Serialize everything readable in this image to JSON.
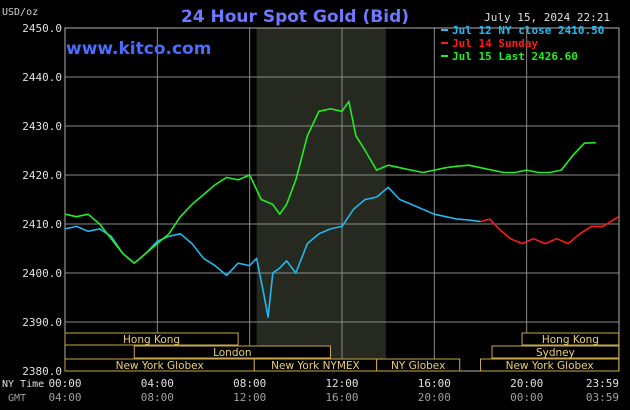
{
  "chart_data": {
    "type": "line",
    "title": "24 Hour Spot Gold (Bid)",
    "watermark": "www.kitco.com",
    "ylabel": "USD/oz",
    "timestamp": "July 15, 2024 22:21",
    "ylim": [
      2380,
      2450
    ],
    "yticks": [
      "2450.0",
      "2440.0",
      "2430.0",
      "2420.0",
      "2410.0",
      "2400.0",
      "2390.0",
      "2380.0"
    ],
    "xlim": [
      0,
      24
    ],
    "xticks_ny": [
      "00:00",
      "04:00",
      "08:00",
      "12:00",
      "16:00",
      "20:00",
      "23:59"
    ],
    "xticks_gmt": [
      "04:00",
      "08:00",
      "12:00",
      "16:00",
      "20:00",
      "00:00",
      "03:59"
    ],
    "x_axis_labels": {
      "ny": "NY Time",
      "gmt": "GMT"
    },
    "legend_placement": "top-right",
    "grid": true,
    "shaded_region_hours": [
      8.3,
      13.9
    ],
    "legend": [
      {
        "label": "Jul 12 NY close 2410.50",
        "color": "#22b8f0"
      },
      {
        "label": "Jul 14 Sunday",
        "color": "#ff1a1a"
      },
      {
        "label": "Jul 15 Last 2426.60",
        "color": "#22ee22"
      }
    ],
    "series": [
      {
        "name": "Jul 12 NY close 2410.50",
        "color": "#22b8f0",
        "x": [
          0,
          0.5,
          1,
          1.5,
          2,
          2.5,
          3,
          3.5,
          4,
          4.5,
          5,
          5.5,
          6,
          6.5,
          7,
          7.5,
          8,
          8.3,
          8.6,
          8.8,
          9,
          9.3,
          9.6,
          10,
          10.5,
          11,
          11.5,
          12,
          12.5,
          13,
          13.5,
          14,
          14.5,
          15,
          15.5,
          16,
          16.5,
          17,
          17.5,
          18
        ],
        "y": [
          2409,
          2409.5,
          2408.5,
          2409,
          2407.5,
          2404,
          2402,
          2404,
          2406.5,
          2407.5,
          2408,
          2406,
          2403,
          2401.5,
          2399.5,
          2402,
          2401.5,
          2403,
          2396,
          2391,
          2400,
          2401,
          2402.5,
          2400,
          2406,
          2408,
          2409,
          2409.5,
          2413,
          2415,
          2415.5,
          2417.5,
          2415,
          2414,
          2413,
          2412,
          2411.5,
          2411,
          2410.8,
          2410.5
        ]
      },
      {
        "name": "Jul 14 Sunday",
        "color": "#ff1a1a",
        "x": [
          18,
          18.4,
          18.8,
          19.3,
          19.8,
          20.3,
          20.8,
          21.3,
          21.8,
          22.3,
          22.8,
          23.3,
          23.99
        ],
        "y": [
          2410.5,
          2411,
          2409,
          2407,
          2406,
          2407,
          2406,
          2407,
          2406,
          2408,
          2409.5,
          2409.5,
          2411.5
        ]
      },
      {
        "name": "Jul 15 Last 2426.60",
        "color": "#22ee22",
        "x": [
          0,
          0.5,
          1,
          1.5,
          2,
          2.5,
          3,
          3.5,
          4,
          4.5,
          5,
          5.5,
          6,
          6.5,
          7,
          7.5,
          8,
          8.5,
          9,
          9.3,
          9.6,
          10,
          10.5,
          11,
          11.5,
          12,
          12.3,
          12.6,
          13,
          13.5,
          14,
          14.5,
          15,
          15.5,
          16,
          16.5,
          17,
          17.5,
          18,
          18.5,
          19,
          19.5,
          20,
          20.5,
          21,
          21.5,
          22,
          22.5,
          23
        ],
        "y": [
          2412,
          2411.5,
          2412,
          2410,
          2407,
          2404,
          2402,
          2404,
          2406,
          2408,
          2411.5,
          2414,
          2416,
          2418,
          2419.5,
          2419,
          2420,
          2415,
          2414,
          2412,
          2414,
          2419,
          2428,
          2433,
          2433.5,
          2433,
          2435,
          2428,
          2425,
          2421,
          2422,
          2421.5,
          2421,
          2420.5,
          2421,
          2421.5,
          2421.8,
          2422,
          2421.5,
          2421,
          2420.5,
          2420.5,
          2421,
          2420.5,
          2420.5,
          2421,
          2424,
          2426.5,
          2426.6
        ]
      }
    ],
    "sessions": [
      {
        "name": "Hong Kong",
        "start": 0,
        "end": 7.5,
        "row": 0
      },
      {
        "name": "Hong Kong",
        "start": 19.8,
        "end": 23.99,
        "row": 0
      },
      {
        "name": "London",
        "start": 3,
        "end": 11.5,
        "row": 1
      },
      {
        "name": "Sydney",
        "start": 18.5,
        "end": 23.99,
        "row": 1
      },
      {
        "name": "New York Globex",
        "start": 0,
        "end": 8.2,
        "row": 2
      },
      {
        "name": "New York NYMEX",
        "start": 8.2,
        "end": 13.5,
        "row": 2
      },
      {
        "name": "NY Globex",
        "start": 13.5,
        "end": 17.1,
        "row": 2
      },
      {
        "name": "New York Globex",
        "start": 18,
        "end": 23.99,
        "row": 2
      }
    ]
  }
}
